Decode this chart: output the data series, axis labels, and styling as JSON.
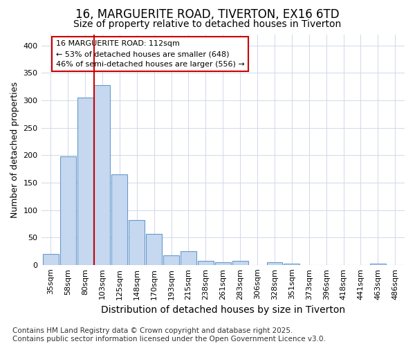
{
  "title": "16, MARGUERITE ROAD, TIVERTON, EX16 6TD",
  "subtitle": "Size of property relative to detached houses in Tiverton",
  "xlabel": "Distribution of detached houses by size in Tiverton",
  "ylabel": "Number of detached properties",
  "categories": [
    "35sqm",
    "58sqm",
    "80sqm",
    "103sqm",
    "125sqm",
    "148sqm",
    "170sqm",
    "193sqm",
    "215sqm",
    "238sqm",
    "261sqm",
    "283sqm",
    "306sqm",
    "328sqm",
    "351sqm",
    "373sqm",
    "396sqm",
    "418sqm",
    "441sqm",
    "463sqm",
    "486sqm"
  ],
  "values": [
    20,
    198,
    305,
    328,
    165,
    82,
    57,
    18,
    25,
    7,
    5,
    7,
    0,
    5,
    2,
    0,
    0,
    0,
    0,
    2,
    0
  ],
  "bar_color": "#c5d8f0",
  "bar_edge_color": "#6699cc",
  "vline_color": "#cc0000",
  "annotation_text": "16 MARGUERITE ROAD: 112sqm\n← 53% of detached houses are smaller (648)\n46% of semi-detached houses are larger (556) →",
  "annotation_box_color": "#ffffff",
  "annotation_box_edge": "#cc0000",
  "ylim": [
    0,
    420
  ],
  "yticks": [
    0,
    50,
    100,
    150,
    200,
    250,
    300,
    350,
    400
  ],
  "background_color": "#ffffff",
  "plot_bg_color": "#ffffff",
  "grid_color": "#d0d8e8",
  "footer": "Contains HM Land Registry data © Crown copyright and database right 2025.\nContains public sector information licensed under the Open Government Licence v3.0.",
  "title_fontsize": 12,
  "subtitle_fontsize": 10,
  "xlabel_fontsize": 10,
  "ylabel_fontsize": 9,
  "tick_fontsize": 8,
  "footer_fontsize": 7.5
}
